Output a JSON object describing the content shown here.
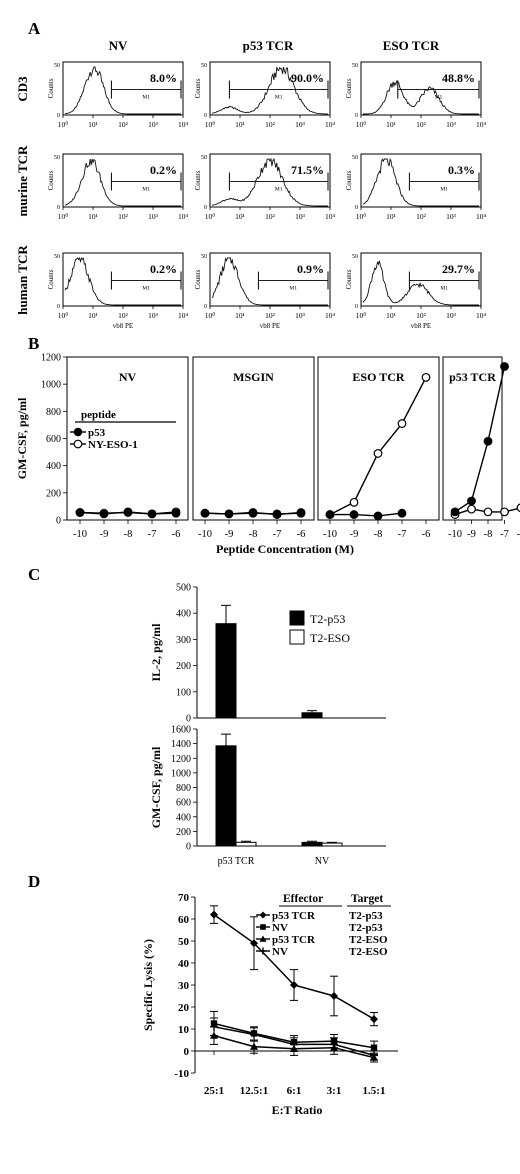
{
  "panel_labels": [
    "A",
    "B",
    "C",
    "D"
  ],
  "chart_data": [
    {
      "panel": "A",
      "type": "histogram-grid",
      "columns": [
        "NV",
        "p53 TCR",
        "ESO TCR"
      ],
      "rows": [
        "CD3",
        "murine TCR",
        "human TCR"
      ],
      "y_axis_label": "Counts",
      "y_ticks": [
        "0",
        "50"
      ],
      "x_ticks": [
        "10⁰",
        "10¹",
        "10²",
        "10³",
        "10⁴"
      ],
      "x_axis_label_bottom": "vb8 PE",
      "gate_label": "M1",
      "percentages": [
        [
          "8.0%",
          "90.0%",
          "48.8%"
        ],
        [
          "0.2%",
          "71.5%",
          "0.3%"
        ],
        [
          "0.2%",
          "0.9%",
          "29.7%"
        ]
      ],
      "values": [
        [
          8.0,
          90.0,
          48.8
        ],
        [
          0.2,
          71.5,
          0.3
        ],
        [
          0.2,
          0.9,
          29.7
        ]
      ],
      "peak_positions_log10": [
        [
          1.0,
          2.4,
          1.7
        ],
        [
          0.9,
          2.0,
          0.8
        ],
        [
          0.5,
          0.6,
          0.6
        ]
      ]
    },
    {
      "panel": "B",
      "type": "line",
      "ylabel": "GM-CSF, pg/ml",
      "xlabel": "Peptide Concentration (M)",
      "ylim": [
        0,
        1200
      ],
      "yticks": [
        0,
        200,
        400,
        600,
        800,
        1000,
        1200
      ],
      "x": [
        -10,
        -9,
        -8,
        -7,
        -6
      ],
      "legend_title": "peptide",
      "legend": [
        "p53",
        "NY-ESO-1"
      ],
      "subplots": [
        {
          "title": "NV",
          "series": [
            {
              "name": "p53",
              "x": [
                -10,
                -9,
                -8,
                -7,
                -6
              ],
              "values": [
                55,
                50,
                55,
                45,
                50
              ]
            },
            {
              "name": "NY-ESO-1",
              "x": [
                -10,
                -9,
                -8,
                -7,
                -6
              ],
              "values": [
                55,
                45,
                60,
                45,
                60
              ]
            }
          ]
        },
        {
          "title": "MSGIN",
          "series": [
            {
              "name": "p53",
              "x": [
                -10,
                -9,
                -8,
                -7,
                -6
              ],
              "values": [
                50,
                45,
                50,
                45,
                50
              ]
            },
            {
              "name": "NY-ESO-1",
              "x": [
                -10,
                -9,
                -8,
                -7,
                -6
              ],
              "values": [
                50,
                45,
                55,
                40,
                55
              ]
            }
          ]
        },
        {
          "title": "ESO TCR",
          "series": [
            {
              "name": "p53",
              "x": [
                -10,
                -9,
                -8,
                -7
              ],
              "values": [
                40,
                40,
                30,
                50
              ]
            },
            {
              "name": "NY-ESO-1",
              "x": [
                -10,
                -9,
                -8,
                -7,
                -6
              ],
              "values": [
                40,
                130,
                490,
                710,
                1050
              ]
            }
          ]
        },
        {
          "title": "p53 TCR",
          "series": [
            {
              "name": "p53",
              "x": [
                -10,
                -9,
                -8,
                -7
              ],
              "values": [
                60,
                140,
                580,
                1130
              ]
            },
            {
              "name": "NY-ESO-1",
              "x": [
                -10,
                -9,
                -8,
                -7,
                -6
              ],
              "values": [
                40,
                80,
                60,
                60,
                90
              ]
            }
          ]
        }
      ]
    },
    {
      "panel": "C-top",
      "type": "bar",
      "categories": [
        "p53 TCR",
        "NV"
      ],
      "ylabel": "IL-2, pg/ml",
      "ylim": [
        0,
        500
      ],
      "yticks": [
        0,
        100,
        200,
        300,
        400,
        500
      ],
      "series": [
        {
          "name": "T2-p53",
          "values": [
            360,
            20
          ],
          "errors": [
            70,
            8
          ]
        },
        {
          "name": "T2-ESO",
          "values": [
            0,
            0
          ],
          "errors": [
            0,
            0
          ]
        }
      ]
    },
    {
      "panel": "C-bottom",
      "type": "bar",
      "categories": [
        "p53 TCR",
        "NV"
      ],
      "ylabel": "GM-CSF, pg/ml",
      "ylim": [
        0,
        1600
      ],
      "yticks": [
        0,
        200,
        400,
        600,
        800,
        1000,
        1200,
        1400,
        1600
      ],
      "series": [
        {
          "name": "T2-p53",
          "values": [
            1370,
            50
          ],
          "errors": [
            160,
            15
          ]
        },
        {
          "name": "T2-ESO",
          "values": [
            50,
            40
          ],
          "errors": [
            15,
            10
          ]
        }
      ]
    },
    {
      "panel": "D",
      "type": "line",
      "ylabel": "Specific Lysis (%)",
      "xlabel": "E:T Ratio",
      "categories": [
        "25:1",
        "12.5:1",
        "6:1",
        "3:1",
        "1.5:1"
      ],
      "ylim": [
        -10,
        70
      ],
      "yticks": [
        -10,
        0,
        10,
        20,
        30,
        40,
        50,
        60,
        70
      ],
      "legend_headers": [
        "Effector",
        "Target"
      ],
      "series": [
        {
          "effector": "p53 TCR",
          "target": "T2-p53",
          "marker": "diamond",
          "values": [
            62,
            49,
            30,
            25,
            14.5
          ],
          "errors": [
            4,
            12,
            7,
            9,
            3
          ]
        },
        {
          "effector": "NV",
          "target": "T2-p53",
          "marker": "square",
          "values": [
            12.5,
            8,
            4,
            4.5,
            1.5
          ],
          "errors": [
            5.5,
            3,
            3,
            3,
            3
          ]
        },
        {
          "effector": "p53 TCR",
          "target": "T2-ESO",
          "marker": "triangle",
          "values": [
            7,
            2,
            1,
            1.5,
            -3
          ],
          "errors": [
            4,
            3,
            3,
            3,
            2
          ]
        },
        {
          "effector": "NV",
          "target": "T2-ESO",
          "marker": "cross",
          "values": [
            11,
            7.5,
            3,
            3,
            -2
          ],
          "errors": [
            4,
            3,
            3,
            3,
            2
          ]
        }
      ]
    }
  ]
}
